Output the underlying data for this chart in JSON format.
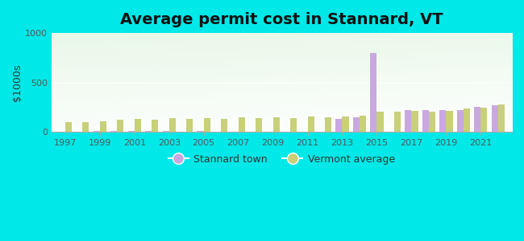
{
  "title": "Average permit cost in Stannard, VT",
  "ylabel": "$1000s",
  "years": [
    1997,
    1998,
    1999,
    2000,
    2001,
    2002,
    2003,
    2004,
    2005,
    2006,
    2007,
    2008,
    2009,
    2010,
    2011,
    2012,
    2013,
    2014,
    2015,
    2016,
    2017,
    2018,
    2019,
    2020,
    2021,
    2022
  ],
  "stannard": [
    5,
    0,
    10,
    10,
    10,
    10,
    10,
    5,
    10,
    5,
    5,
    0,
    5,
    0,
    5,
    0,
    130,
    150,
    800,
    0,
    220,
    220,
    220,
    220,
    250,
    270
  ],
  "vermont": [
    100,
    100,
    110,
    120,
    130,
    120,
    140,
    130,
    140,
    130,
    145,
    140,
    150,
    140,
    155,
    145,
    155,
    165,
    205,
    205,
    215,
    205,
    210,
    235,
    245,
    275
  ],
  "stannard_color": "#c9a8df",
  "vermont_color": "#c8d07a",
  "ylim": [
    0,
    1000
  ],
  "yticks": [
    0,
    500,
    1000
  ],
  "outer_background": "#00e8e8",
  "title_fontsize": 14,
  "bar_width": 0.38,
  "legend_stannard": "Stannard town",
  "legend_vermont": "Vermont average"
}
